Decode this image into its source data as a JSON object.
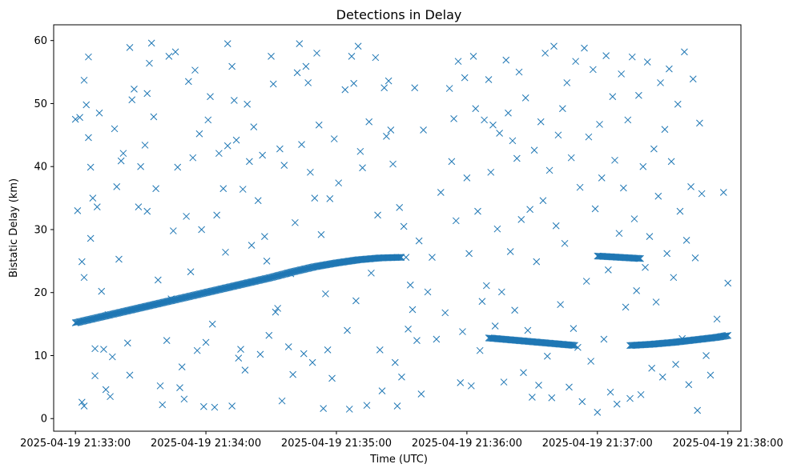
{
  "chart_data": {
    "type": "scatter",
    "title": "Detections in Delay",
    "xlabel": "Time (UTC)",
    "ylabel": "Bistatic Delay (km)",
    "x_unit": "time",
    "xlim": [
      "2025-04-19 21:32:50",
      "2025-04-19 21:38:06"
    ],
    "ylim": [
      -2.0,
      62.5
    ],
    "x_ticks": [
      "2025-04-19 21:33:00",
      "2025-04-19 21:34:00",
      "2025-04-19 21:35:00",
      "2025-04-19 21:36:00",
      "2025-04-19 21:37:00",
      "2025-04-19 21:38:00"
    ],
    "y_ticks": [
      0,
      10,
      20,
      30,
      40,
      50,
      60
    ],
    "grid": false,
    "marker": "x",
    "marker_color": "#1f77b4",
    "tracks": [
      {
        "t": [
          "21:33:00",
          "21:33:10",
          "21:33:20",
          "21:33:30",
          "21:33:40",
          "21:33:50",
          "21:34:00",
          "21:34:10",
          "21:34:20",
          "21:34:30",
          "21:34:40",
          "21:34:50",
          "21:35:00",
          "21:35:10",
          "21:35:20",
          "21:35:30"
        ],
        "y": [
          15.2,
          16.0,
          16.8,
          17.6,
          18.4,
          19.2,
          20.0,
          20.8,
          21.6,
          22.4,
          23.3,
          24.1,
          24.7,
          25.2,
          25.5,
          25.6
        ]
      },
      {
        "t": [
          "21:36:10",
          "21:36:20",
          "21:36:30",
          "21:36:40",
          "21:36:50"
        ],
        "y": [
          12.8,
          12.5,
          12.2,
          11.9,
          11.6
        ]
      },
      {
        "t": [
          "21:37:00",
          "21:37:10",
          "21:37:20"
        ],
        "y": [
          25.8,
          25.6,
          25.4
        ]
      },
      {
        "t": [
          "21:37:15",
          "21:37:25",
          "21:37:35",
          "21:37:45",
          "21:37:55",
          "21:38:00"
        ],
        "y": [
          11.6,
          11.8,
          12.1,
          12.5,
          12.9,
          13.2
        ]
      }
    ],
    "clutter": [
      [
        "21:33:00",
        47.5
      ],
      [
        "21:33:01",
        33.0
      ],
      [
        "21:33:02",
        47.8
      ],
      [
        "21:33:03",
        24.9
      ],
      [
        "21:33:03",
        2.6
      ],
      [
        "21:33:04",
        53.7
      ],
      [
        "21:33:04",
        2.0
      ],
      [
        "21:33:04",
        22.4
      ],
      [
        "21:33:05",
        49.8
      ],
      [
        "21:33:06",
        44.6
      ],
      [
        "21:33:06",
        57.4
      ],
      [
        "21:33:07",
        28.6
      ],
      [
        "21:33:07",
        39.9
      ],
      [
        "21:33:08",
        35.0
      ],
      [
        "21:33:09",
        11.1
      ],
      [
        "21:33:09",
        6.8
      ],
      [
        "21:33:10",
        33.6
      ],
      [
        "21:33:11",
        48.5
      ],
      [
        "21:33:12",
        20.2
      ],
      [
        "21:33:13",
        11.0
      ],
      [
        "21:33:14",
        4.6
      ],
      [
        "21:33:15",
        16.5
      ],
      [
        "21:33:16",
        3.5
      ],
      [
        "21:33:17",
        9.8
      ],
      [
        "21:33:18",
        46.0
      ],
      [
        "21:33:19",
        36.8
      ],
      [
        "21:33:20",
        25.3
      ],
      [
        "21:33:21",
        40.9
      ],
      [
        "21:33:22",
        42.1
      ],
      [
        "21:33:24",
        12.0
      ],
      [
        "21:33:25",
        6.9
      ],
      [
        "21:33:25",
        58.9
      ],
      [
        "21:33:26",
        50.6
      ],
      [
        "21:33:27",
        52.3
      ],
      [
        "21:33:29",
        33.6
      ],
      [
        "21:33:30",
        40.0
      ],
      [
        "21:33:32",
        43.4
      ],
      [
        "21:33:33",
        32.9
      ],
      [
        "21:33:33",
        51.6
      ],
      [
        "21:33:34",
        56.4
      ],
      [
        "21:33:35",
        59.6
      ],
      [
        "21:33:36",
        47.9
      ],
      [
        "21:33:37",
        36.5
      ],
      [
        "21:33:38",
        22.0
      ],
      [
        "21:33:39",
        5.2
      ],
      [
        "21:33:40",
        2.2
      ],
      [
        "21:33:42",
        12.4
      ],
      [
        "21:33:43",
        57.5
      ],
      [
        "21:33:44",
        19.0
      ],
      [
        "21:33:45",
        29.8
      ],
      [
        "21:33:46",
        58.2
      ],
      [
        "21:33:47",
        39.9
      ],
      [
        "21:33:48",
        4.9
      ],
      [
        "21:33:49",
        8.2
      ],
      [
        "21:33:50",
        3.1
      ],
      [
        "21:33:51",
        32.1
      ],
      [
        "21:33:52",
        53.5
      ],
      [
        "21:33:53",
        23.3
      ],
      [
        "21:33:54",
        41.4
      ],
      [
        "21:33:55",
        55.3
      ],
      [
        "21:33:56",
        10.8
      ],
      [
        "21:33:57",
        45.2
      ],
      [
        "21:33:58",
        30.0
      ],
      [
        "21:33:59",
        1.9
      ],
      [
        "21:34:00",
        12.1
      ],
      [
        "21:34:01",
        47.4
      ],
      [
        "21:34:02",
        51.1
      ],
      [
        "21:34:03",
        15.0
      ],
      [
        "21:34:04",
        1.8
      ],
      [
        "21:34:05",
        32.3
      ],
      [
        "21:34:06",
        42.1
      ],
      [
        "21:34:08",
        36.5
      ],
      [
        "21:34:09",
        26.4
      ],
      [
        "21:34:10",
        43.3
      ],
      [
        "21:34:10",
        59.5
      ],
      [
        "21:34:12",
        2.0
      ],
      [
        "21:34:12",
        55.9
      ],
      [
        "21:34:13",
        50.5
      ],
      [
        "21:34:14",
        44.2
      ],
      [
        "21:34:15",
        9.6
      ],
      [
        "21:34:16",
        11.0
      ],
      [
        "21:34:17",
        36.4
      ],
      [
        "21:34:18",
        7.7
      ],
      [
        "21:34:19",
        49.9
      ],
      [
        "21:34:20",
        40.8
      ],
      [
        "21:34:21",
        27.5
      ],
      [
        "21:34:22",
        46.3
      ],
      [
        "21:34:24",
        34.6
      ],
      [
        "21:34:25",
        10.2
      ],
      [
        "21:34:26",
        41.8
      ],
      [
        "21:34:27",
        28.9
      ],
      [
        "21:34:28",
        25.0
      ],
      [
        "21:34:29",
        13.2
      ],
      [
        "21:34:30",
        57.5
      ],
      [
        "21:34:31",
        53.1
      ],
      [
        "21:34:32",
        16.9
      ],
      [
        "21:34:33",
        17.5
      ],
      [
        "21:34:34",
        42.8
      ],
      [
        "21:34:35",
        2.8
      ],
      [
        "21:34:36",
        40.2
      ],
      [
        "21:34:38",
        11.4
      ],
      [
        "21:34:39",
        23.0
      ],
      [
        "21:34:40",
        7.0
      ],
      [
        "21:34:41",
        31.1
      ],
      [
        "21:34:42",
        54.9
      ],
      [
        "21:34:43",
        59.5
      ],
      [
        "21:34:44",
        43.5
      ],
      [
        "21:34:45",
        10.3
      ],
      [
        "21:34:46",
        55.9
      ],
      [
        "21:34:47",
        53.3
      ],
      [
        "21:34:48",
        39.1
      ],
      [
        "21:34:49",
        8.9
      ],
      [
        "21:34:50",
        35.0
      ],
      [
        "21:34:51",
        58.0
      ],
      [
        "21:34:52",
        46.6
      ],
      [
        "21:34:53",
        29.2
      ],
      [
        "21:34:54",
        1.6
      ],
      [
        "21:34:55",
        19.8
      ],
      [
        "21:34:56",
        10.9
      ],
      [
        "21:34:57",
        34.9
      ],
      [
        "21:34:58",
        6.4
      ],
      [
        "21:34:59",
        44.4
      ],
      [
        "21:35:01",
        37.4
      ],
      [
        "21:35:04",
        52.2
      ],
      [
        "21:35:05",
        14.0
      ],
      [
        "21:35:06",
        1.5
      ],
      [
        "21:35:07",
        57.5
      ],
      [
        "21:35:08",
        53.2
      ],
      [
        "21:35:09",
        18.7
      ],
      [
        "21:35:10",
        59.1
      ],
      [
        "21:35:11",
        42.4
      ],
      [
        "21:35:12",
        39.8
      ],
      [
        "21:35:14",
        2.1
      ],
      [
        "21:35:15",
        47.1
      ],
      [
        "21:35:16",
        23.1
      ],
      [
        "21:35:18",
        57.3
      ],
      [
        "21:35:19",
        32.3
      ],
      [
        "21:35:20",
        10.9
      ],
      [
        "21:35:21",
        4.4
      ],
      [
        "21:35:22",
        52.5
      ],
      [
        "21:35:23",
        44.8
      ],
      [
        "21:35:24",
        53.6
      ],
      [
        "21:35:25",
        45.8
      ],
      [
        "21:35:26",
        40.4
      ],
      [
        "21:35:27",
        8.9
      ],
      [
        "21:35:28",
        2.0
      ],
      [
        "21:35:29",
        33.5
      ],
      [
        "21:35:30",
        6.6
      ],
      [
        "21:35:31",
        30.5
      ],
      [
        "21:35:32",
        25.6
      ],
      [
        "21:35:33",
        14.2
      ],
      [
        "21:35:34",
        21.2
      ],
      [
        "21:35:35",
        17.3
      ],
      [
        "21:35:36",
        52.5
      ],
      [
        "21:35:37",
        12.4
      ],
      [
        "21:35:38",
        28.2
      ],
      [
        "21:35:39",
        3.9
      ],
      [
        "21:35:40",
        45.8
      ],
      [
        "21:35:42",
        20.1
      ],
      [
        "21:35:44",
        25.6
      ],
      [
        "21:35:46",
        12.6
      ],
      [
        "21:35:48",
        35.9
      ],
      [
        "21:35:50",
        16.8
      ],
      [
        "21:35:52",
        52.4
      ],
      [
        "21:35:53",
        40.8
      ],
      [
        "21:35:54",
        47.6
      ],
      [
        "21:35:55",
        31.4
      ],
      [
        "21:35:56",
        56.7
      ],
      [
        "21:35:57",
        5.7
      ],
      [
        "21:35:58",
        13.8
      ],
      [
        "21:35:59",
        54.1
      ],
      [
        "21:36:00",
        38.2
      ],
      [
        "21:36:01",
        26.2
      ],
      [
        "21:36:02",
        5.2
      ],
      [
        "21:36:03",
        57.5
      ],
      [
        "21:36:04",
        49.2
      ],
      [
        "21:36:05",
        32.9
      ],
      [
        "21:36:06",
        10.8
      ],
      [
        "21:36:07",
        18.6
      ],
      [
        "21:36:08",
        47.4
      ],
      [
        "21:36:09",
        21.1
      ],
      [
        "21:36:10",
        53.8
      ],
      [
        "21:36:11",
        39.1
      ],
      [
        "21:36:12",
        46.6
      ],
      [
        "21:36:13",
        14.7
      ],
      [
        "21:36:14",
        30.1
      ],
      [
        "21:36:15",
        45.3
      ],
      [
        "21:36:16",
        20.1
      ],
      [
        "21:36:17",
        5.8
      ],
      [
        "21:36:18",
        56.9
      ],
      [
        "21:36:19",
        48.5
      ],
      [
        "21:36:20",
        26.5
      ],
      [
        "21:36:21",
        44.1
      ],
      [
        "21:36:22",
        17.2
      ],
      [
        "21:36:23",
        41.3
      ],
      [
        "21:36:24",
        55.0
      ],
      [
        "21:36:25",
        31.6
      ],
      [
        "21:36:26",
        7.3
      ],
      [
        "21:36:27",
        50.9
      ],
      [
        "21:36:28",
        14.0
      ],
      [
        "21:36:29",
        33.2
      ],
      [
        "21:36:30",
        3.4
      ],
      [
        "21:36:31",
        42.6
      ],
      [
        "21:36:32",
        24.9
      ],
      [
        "21:36:33",
        5.3
      ],
      [
        "21:36:34",
        47.1
      ],
      [
        "21:36:35",
        34.6
      ],
      [
        "21:36:36",
        58.0
      ],
      [
        "21:36:37",
        9.9
      ],
      [
        "21:36:38",
        39.4
      ],
      [
        "21:36:39",
        3.3
      ],
      [
        "21:36:40",
        59.1
      ],
      [
        "21:36:41",
        30.6
      ],
      [
        "21:36:42",
        45.0
      ],
      [
        "21:36:43",
        18.1
      ],
      [
        "21:36:44",
        49.2
      ],
      [
        "21:36:45",
        27.8
      ],
      [
        "21:36:46",
        53.3
      ],
      [
        "21:36:47",
        5.0
      ],
      [
        "21:36:48",
        41.4
      ],
      [
        "21:36:49",
        14.3
      ],
      [
        "21:36:50",
        56.7
      ],
      [
        "21:36:51",
        11.3
      ],
      [
        "21:36:52",
        36.7
      ],
      [
        "21:36:53",
        2.7
      ],
      [
        "21:36:54",
        58.8
      ],
      [
        "21:36:55",
        21.8
      ],
      [
        "21:36:56",
        44.7
      ],
      [
        "21:36:57",
        9.1
      ],
      [
        "21:36:58",
        55.4
      ],
      [
        "21:36:59",
        33.3
      ],
      [
        "21:37:00",
        1.0
      ],
      [
        "21:37:01",
        46.7
      ],
      [
        "21:37:02",
        38.2
      ],
      [
        "21:37:03",
        12.6
      ],
      [
        "21:37:04",
        57.6
      ],
      [
        "21:37:05",
        23.6
      ],
      [
        "21:37:06",
        4.2
      ],
      [
        "21:37:07",
        51.1
      ],
      [
        "21:37:08",
        41.0
      ],
      [
        "21:37:09",
        2.3
      ],
      [
        "21:37:10",
        29.4
      ],
      [
        "21:37:11",
        54.7
      ],
      [
        "21:37:12",
        36.6
      ],
      [
        "21:37:13",
        17.7
      ],
      [
        "21:37:14",
        47.4
      ],
      [
        "21:37:15",
        3.2
      ],
      [
        "21:37:16",
        57.4
      ],
      [
        "21:37:17",
        31.7
      ],
      [
        "21:37:18",
        20.3
      ],
      [
        "21:37:19",
        51.3
      ],
      [
        "21:37:20",
        3.8
      ],
      [
        "21:37:21",
        40.0
      ],
      [
        "21:37:22",
        24.0
      ],
      [
        "21:37:23",
        56.6
      ],
      [
        "21:37:24",
        28.9
      ],
      [
        "21:37:25",
        8.0
      ],
      [
        "21:37:26",
        42.8
      ],
      [
        "21:37:27",
        18.5
      ],
      [
        "21:37:28",
        35.3
      ],
      [
        "21:37:29",
        53.3
      ],
      [
        "21:37:30",
        6.6
      ],
      [
        "21:37:31",
        45.9
      ],
      [
        "21:37:32",
        26.2
      ],
      [
        "21:37:33",
        55.5
      ],
      [
        "21:37:34",
        40.8
      ],
      [
        "21:37:35",
        22.4
      ],
      [
        "21:37:36",
        8.6
      ],
      [
        "21:37:37",
        49.9
      ],
      [
        "21:37:38",
        32.9
      ],
      [
        "21:37:39",
        12.7
      ],
      [
        "21:37:40",
        58.2
      ],
      [
        "21:37:41",
        28.3
      ],
      [
        "21:37:42",
        5.4
      ],
      [
        "21:37:43",
        36.8
      ],
      [
        "21:37:44",
        53.9
      ],
      [
        "21:37:45",
        25.5
      ],
      [
        "21:37:46",
        1.3
      ],
      [
        "21:37:47",
        46.9
      ],
      [
        "21:37:48",
        35.7
      ],
      [
        "21:37:50",
        10.0
      ],
      [
        "21:37:52",
        6.9
      ],
      [
        "21:37:55",
        15.8
      ],
      [
        "21:37:58",
        35.9
      ],
      [
        "21:38:00",
        21.5
      ]
    ]
  }
}
